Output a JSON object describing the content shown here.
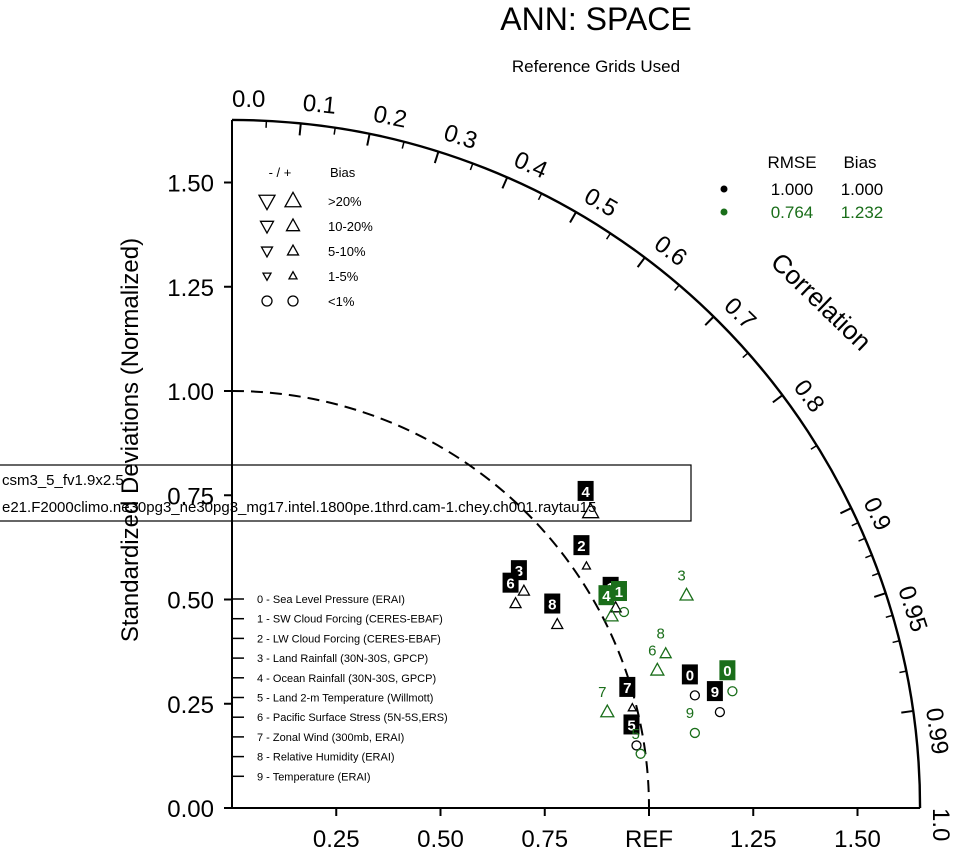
{
  "chart_data": {
    "type": "scatter",
    "subtype": "taylor-diagram",
    "title": "ANN: SPACE",
    "subtitle": "Reference Grids Used",
    "ylabel": "Standardized Deviations (Normalized)",
    "arc_label": "Correlation",
    "ref_label": "REF",
    "std_ticks_y": [
      "0.00",
      "0.25",
      "0.50",
      "0.75",
      "1.00",
      "1.25",
      "1.50"
    ],
    "std_ticks_x": [
      "0.25",
      "0.50",
      "0.75",
      "1.25",
      "1.50"
    ],
    "max_std": 1.65,
    "ref_std": 1.0,
    "corr_major": [
      0.0,
      0.1,
      0.2,
      0.3,
      0.4,
      0.5,
      0.6,
      0.7,
      0.8,
      0.9,
      0.95,
      0.99,
      1.0
    ],
    "corr_labels": [
      "0.0",
      "0.1",
      "0.2",
      "0.3",
      "0.4",
      "0.5",
      "0.6",
      "0.7",
      "0.8",
      "0.9",
      "0.95",
      "0.99",
      "1.0"
    ],
    "corr_minor": [
      0.05,
      0.15,
      0.25,
      0.35,
      0.45,
      0.55,
      0.65,
      0.75,
      0.85,
      0.91,
      0.92,
      0.93,
      0.94,
      0.96,
      0.97,
      0.98
    ],
    "bias_legend": {
      "header_sign": "- / +",
      "header_bias": "Bias",
      "rows": [
        ">20%",
        "10-20%",
        "5-10%",
        "1-5%",
        "<1%"
      ]
    },
    "stats_table": {
      "header_rmse": "RMSE",
      "header_bias": "Bias",
      "rows": [
        {
          "rmse": "1.000",
          "bias": "1.000",
          "color": "#000000"
        },
        {
          "rmse": "0.764",
          "bias": "1.232",
          "color": "#1a6e1a"
        }
      ]
    },
    "case_box": {
      "line1": "csm3_5_fv1.9x2.5",
      "line2": "e21.F2000climo.ne30pg3_ne30pg3_mg17.intel.1800pe.1thrd.cam-1.chey.ch001.raytau15"
    },
    "variables": [
      "0 - Sea Level Pressure (ERAI)",
      "1 - SW Cloud Forcing (CERES-EBAF)",
      "2 - LW Cloud Forcing (CERES-EBAF)",
      "3 - Land Rainfall (30N-30S, GPCP)",
      "4 - Ocean Rainfall (30N-30S, GPCP)",
      "5 - Land 2-m Temperature (Willmott)",
      "6 - Pacific Surface Stress (5N-5S,ERS)",
      "7 - Zonal Wind (300mb, ERAI)",
      "8 - Relative Humidity (ERAI)",
      "9 - Temperature (ERAI)"
    ],
    "series": [
      {
        "color": "#000000",
        "style": "boxed",
        "points": [
          {
            "label": "0",
            "x": 1.11,
            "y": 0.27,
            "marker": "circle",
            "size": 1
          },
          {
            "label": "1",
            "x": 0.92,
            "y": 0.48,
            "marker": "up",
            "size": 2
          },
          {
            "label": "2",
            "x": 0.85,
            "y": 0.58,
            "marker": "up",
            "size": 1
          },
          {
            "label": "3",
            "x": 0.7,
            "y": 0.52,
            "marker": "up",
            "size": 2
          },
          {
            "label": "4",
            "x": 0.86,
            "y": 0.71,
            "marker": "up",
            "size": 4
          },
          {
            "label": "5",
            "x": 0.97,
            "y": 0.15,
            "marker": "circle",
            "size": 1
          },
          {
            "label": "6",
            "x": 0.68,
            "y": 0.49,
            "marker": "up",
            "size": 2
          },
          {
            "label": "7",
            "x": 0.96,
            "y": 0.24,
            "marker": "up",
            "size": 1
          },
          {
            "label": "8",
            "x": 0.78,
            "y": 0.44,
            "marker": "up",
            "size": 2
          },
          {
            "label": "9",
            "x": 1.17,
            "y": 0.23,
            "marker": "circle",
            "size": 1
          }
        ]
      },
      {
        "color": "#1a6e1a",
        "style": "mixed",
        "points": [
          {
            "label": "0",
            "x": 1.2,
            "y": 0.28,
            "marker": "circle",
            "size": 1,
            "boxed": true
          },
          {
            "label": "1",
            "x": 0.94,
            "y": 0.47,
            "marker": "circle",
            "size": 1,
            "boxed": true
          },
          {
            "label": "3",
            "x": 1.09,
            "y": 0.51,
            "marker": "up",
            "size": 3,
            "boxed": false
          },
          {
            "label": "4",
            "x": 0.91,
            "y": 0.46,
            "marker": "up",
            "size": 3,
            "boxed": true
          },
          {
            "label": "5",
            "x": 0.98,
            "y": 0.13,
            "marker": "circle",
            "size": 1,
            "boxed": false
          },
          {
            "label": "6",
            "x": 1.02,
            "y": 0.33,
            "marker": "up",
            "size": 3,
            "boxed": false
          },
          {
            "label": "7",
            "x": 0.9,
            "y": 0.23,
            "marker": "up",
            "size": 3,
            "boxed": false
          },
          {
            "label": "8",
            "x": 1.04,
            "y": 0.37,
            "marker": "up",
            "size": 2,
            "boxed": false
          },
          {
            "label": "9",
            "x": 1.11,
            "y": 0.18,
            "marker": "circle",
            "size": 1,
            "boxed": false
          }
        ]
      }
    ]
  }
}
